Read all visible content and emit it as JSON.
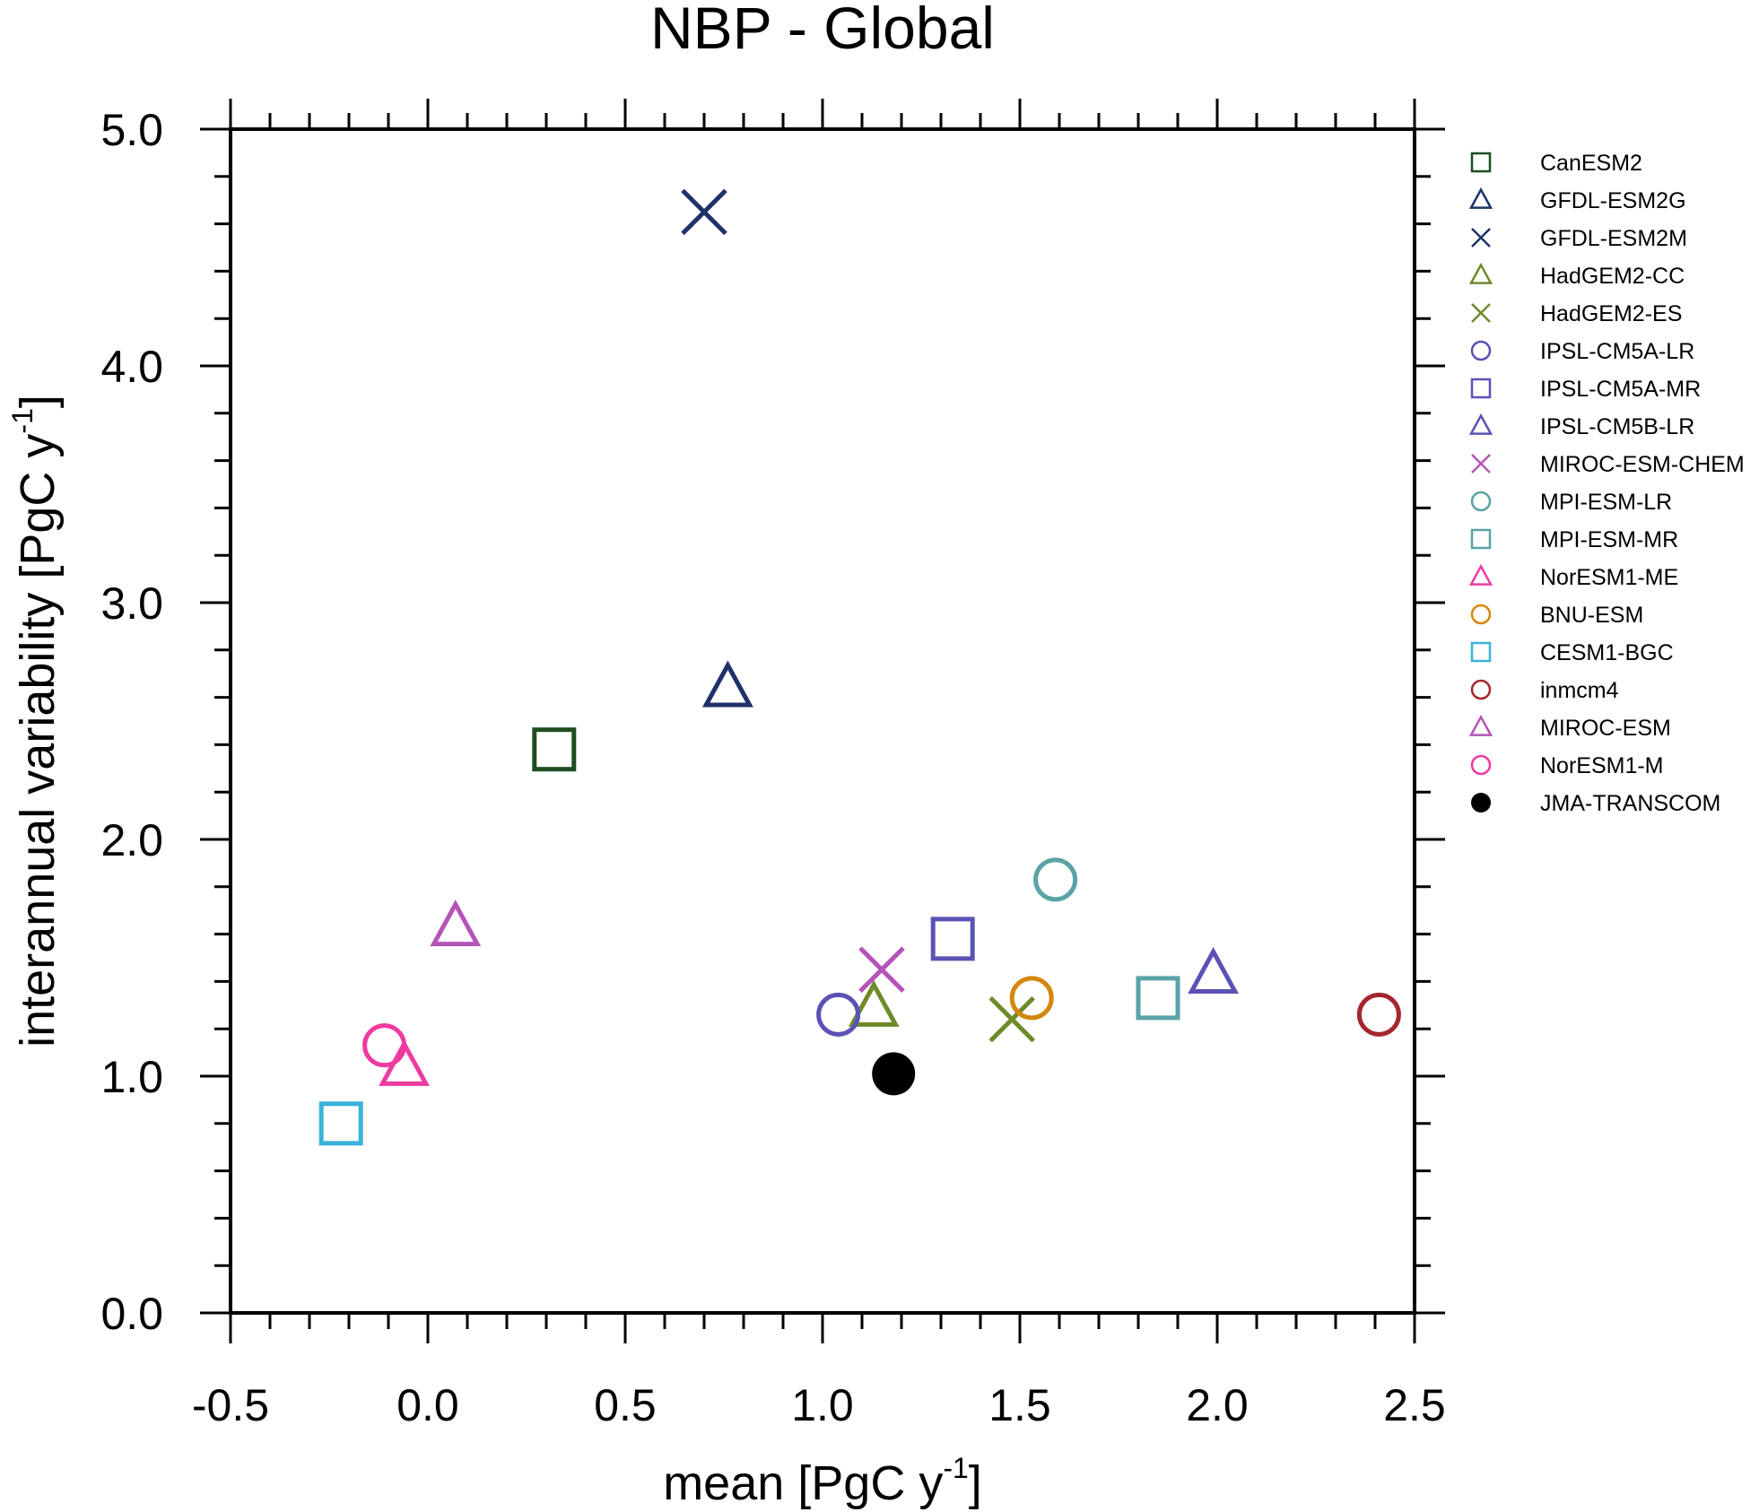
{
  "chart_data": {
    "type": "scatter",
    "title": "NBP - Global",
    "xlabel": {
      "base": "mean [PgC y",
      "sup": "-1",
      "end": "]"
    },
    "ylabel": {
      "base": "interannual variability [PgC y",
      "sup": "-1",
      "end": "]"
    },
    "xlim": [
      -0.5,
      2.5
    ],
    "ylim": [
      0.0,
      5.0
    ],
    "x_ticks": [
      -0.5,
      0.0,
      0.5,
      1.0,
      1.5,
      2.0,
      2.5
    ],
    "x_tick_labels": [
      "-0.5",
      "0.0",
      "0.5",
      "1.0",
      "1.5",
      "2.0",
      "2.5"
    ],
    "y_ticks": [
      0.0,
      1.0,
      2.0,
      3.0,
      4.0,
      5.0
    ],
    "y_tick_labels": [
      "0.0",
      "1.0",
      "2.0",
      "3.0",
      "4.0",
      "5.0"
    ],
    "grid": false,
    "legend_position": "right",
    "series": [
      {
        "name": "CanESM2",
        "marker": "square",
        "color": "#1e4d22",
        "x": 0.32,
        "y": 2.38
      },
      {
        "name": "GFDL-ESM2G",
        "marker": "triangle",
        "color": "#1f3169",
        "x": 0.76,
        "y": 2.64
      },
      {
        "name": "GFDL-ESM2M",
        "marker": "x",
        "color": "#1f3169",
        "x": 0.7,
        "y": 4.65
      },
      {
        "name": "HadGEM2-CC",
        "marker": "triangle",
        "color": "#6e8a2a",
        "x": 1.13,
        "y": 1.29
      },
      {
        "name": "HadGEM2-ES",
        "marker": "x",
        "color": "#6e8a2a",
        "x": 1.48,
        "y": 1.24
      },
      {
        "name": "IPSL-CM5A-LR",
        "marker": "circle",
        "color": "#5b52b5",
        "x": 1.04,
        "y": 1.26
      },
      {
        "name": "IPSL-CM5A-MR",
        "marker": "square",
        "color": "#5b52b5",
        "x": 1.33,
        "y": 1.58
      },
      {
        "name": "IPSL-CM5B-LR",
        "marker": "triangle",
        "color": "#5b52b5",
        "x": 1.99,
        "y": 1.43
      },
      {
        "name": "MIROC-ESM-CHEM",
        "marker": "x",
        "color": "#b554b8",
        "x": 1.15,
        "y": 1.45
      },
      {
        "name": "MPI-ESM-LR",
        "marker": "circle",
        "color": "#5ba3a6",
        "x": 1.59,
        "y": 1.83
      },
      {
        "name": "MPI-ESM-MR",
        "marker": "square",
        "color": "#5ba3a6",
        "x": 1.85,
        "y": 1.33
      },
      {
        "name": "NorESM1-ME",
        "marker": "triangle",
        "color": "#ef3aa0",
        "x": -0.06,
        "y": 1.04
      },
      {
        "name": "BNU-ESM",
        "marker": "circle",
        "color": "#d4870d",
        "x": 1.53,
        "y": 1.33
      },
      {
        "name": "CESM1-BGC",
        "marker": "square",
        "color": "#3ab3da",
        "x": -0.22,
        "y": 0.8
      },
      {
        "name": "inmcm4",
        "marker": "circle",
        "color": "#a5252e",
        "x": 2.41,
        "y": 1.26
      },
      {
        "name": "MIROC-ESM",
        "marker": "triangle",
        "color": "#b554b8",
        "x": 0.07,
        "y": 1.63
      },
      {
        "name": "NorESM1-M",
        "marker": "circle",
        "color": "#ef3aa0",
        "x": -0.11,
        "y": 1.13
      },
      {
        "name": "JMA-TRANSCOM",
        "marker": "filled-circle",
        "color": "#000000",
        "x": 1.18,
        "y": 1.01
      }
    ]
  }
}
